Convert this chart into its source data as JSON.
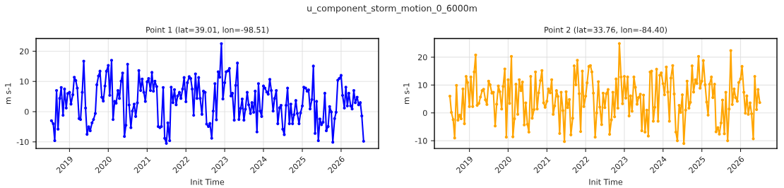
{
  "chart_data": [
    {
      "type": "line",
      "title": "Point 1 (lat=39.01, lon=-98.51)",
      "xlabel": "Init Time",
      "ylabel": "m s-1",
      "annotations": [
        "u_component_storm_motion_0_6000m"
      ],
      "x": [
        "2018-07-15",
        "2018-08-01",
        "2018-08-15",
        "2018-09-01",
        "2018-09-15",
        "2018-10-01",
        "2018-10-15",
        "2018-11-01",
        "2018-11-15",
        "2018-12-01",
        "2018-12-15",
        "2019-01-01",
        "2019-01-15",
        "2019-02-01",
        "2019-02-15",
        "2019-03-01",
        "2019-03-15",
        "2019-04-01",
        "2019-04-15",
        "2019-05-01",
        "2019-05-15",
        "2019-06-01",
        "2019-06-15",
        "2019-07-01",
        "2019-07-15",
        "2019-08-01",
        "2019-08-15",
        "2019-09-01",
        "2019-09-15",
        "2019-10-01",
        "2019-10-15",
        "2019-11-01",
        "2019-11-15",
        "2019-12-01",
        "2019-12-15",
        "2020-01-01",
        "2020-01-15",
        "2020-02-01",
        "2020-02-15",
        "2020-03-01",
        "2020-03-15",
        "2020-04-01",
        "2020-04-15",
        "2020-05-01",
        "2020-05-15",
        "2020-06-01",
        "2020-06-15",
        "2020-07-01",
        "2020-07-15",
        "2020-08-01",
        "2020-08-15",
        "2020-09-01",
        "2020-09-15",
        "2020-10-01",
        "2020-10-15",
        "2020-11-01",
        "2020-11-15",
        "2020-12-01",
        "2020-12-15",
        "2021-01-01",
        "2021-01-15",
        "2021-02-01",
        "2021-02-15",
        "2021-03-01",
        "2021-03-15",
        "2021-04-01",
        "2021-04-15",
        "2021-05-01",
        "2021-05-15",
        "2021-06-01",
        "2021-06-15",
        "2021-07-01",
        "2021-07-15",
        "2021-08-01",
        "2021-08-15",
        "2021-09-01",
        "2021-09-15",
        "2021-10-01",
        "2021-10-15",
        "2021-11-01",
        "2021-11-15",
        "2021-12-01",
        "2021-12-15",
        "2022-01-01",
        "2022-01-15",
        "2022-02-01",
        "2022-02-15",
        "2022-03-01",
        "2022-03-15",
        "2022-04-01",
        "2022-04-15",
        "2022-05-01",
        "2022-05-15",
        "2022-06-01",
        "2022-06-15",
        "2022-07-01",
        "2022-07-15",
        "2022-08-01",
        "2022-08-15",
        "2022-09-01",
        "2022-09-15",
        "2022-10-01",
        "2022-10-15",
        "2022-11-01",
        "2022-11-15",
        "2022-12-01",
        "2022-12-15",
        "2023-01-01",
        "2023-01-15",
        "2023-02-01",
        "2023-02-15",
        "2023-03-01",
        "2023-03-15",
        "2023-04-01",
        "2023-04-15",
        "2023-05-01",
        "2023-05-15",
        "2023-06-01",
        "2023-06-15",
        "2023-07-01",
        "2023-07-15",
        "2023-08-01",
        "2023-08-15",
        "2023-09-01",
        "2023-09-15",
        "2023-10-01",
        "2023-10-15",
        "2023-11-01",
        "2023-11-15",
        "2023-12-01",
        "2023-12-15",
        "2024-01-01",
        "2024-01-15",
        "2024-02-01",
        "2024-02-15",
        "2024-03-01",
        "2024-03-15",
        "2024-04-01",
        "2024-04-15",
        "2024-05-01",
        "2024-05-15",
        "2024-06-01",
        "2024-06-15",
        "2024-07-01",
        "2024-07-15",
        "2024-08-01",
        "2024-08-15",
        "2024-09-01",
        "2024-09-15",
        "2024-10-01",
        "2024-10-15",
        "2024-11-01",
        "2024-11-15",
        "2024-12-01",
        "2024-12-15",
        "2025-01-01",
        "2025-01-15",
        "2025-02-01",
        "2025-02-15",
        "2025-03-01",
        "2025-03-15",
        "2025-04-01",
        "2025-04-15",
        "2025-05-01",
        "2025-05-15",
        "2025-06-01",
        "2025-06-15",
        "2025-07-01",
        "2025-07-15",
        "2025-08-01",
        "2025-08-15",
        "2025-09-01",
        "2025-09-15",
        "2025-10-01",
        "2025-10-15",
        "2025-11-01",
        "2025-11-15",
        "2025-12-01",
        "2025-12-15",
        "2026-01-01",
        "2026-01-15",
        "2026-02-01",
        "2026-02-15",
        "2026-03-01",
        "2026-03-15",
        "2026-04-01",
        "2026-04-15",
        "2026-05-01",
        "2026-05-15",
        "2026-06-01",
        "2026-06-15",
        "2026-07-01",
        "2026-07-15",
        "2026-08-01"
      ],
      "series": [
        {
          "color": "#0000ff",
          "values": [
            -3,
            -4,
            -9.6,
            7,
            -5.8,
            4.4,
            8,
            -1.2,
            7.5,
            1.2,
            6,
            6.4,
            2.5,
            5.6,
            11.4,
            10.3,
            7.8,
            -2.3,
            -2.6,
            6.4,
            16.7,
            1.2,
            -7.5,
            -5,
            -6.3,
            -3.7,
            -2.6,
            -0.6,
            8.9,
            11.8,
            13.4,
            4.8,
            3.5,
            8.5,
            13.4,
            15.3,
            5.4,
            17,
            -2.6,
            3.4,
            2.8,
            7,
            4.4,
            10.1,
            12.8,
            -8.2,
            -4.5,
            15.7,
            2.2,
            -5.3,
            0.2,
            2.5,
            -1.6,
            2.9,
            13.6,
            7,
            10.8,
            6.4,
            3.4,
            9.9,
            11,
            7,
            13,
            6.8,
            10.1,
            8.3,
            -4.9,
            -5.3,
            -4.9,
            8,
            -8.8,
            -10.5,
            -3.7,
            -9.6,
            8.1,
            3,
            7.3,
            2.3,
            5.2,
            6.4,
            4.4,
            7.5,
            11.3,
            3.3,
            9.6,
            11.6,
            11,
            7.5,
            -1.2,
            12.5,
            4.4,
            11.3,
            4.4,
            -0.9,
            6.8,
            6.4,
            -4.1,
            -4.9,
            -3.9,
            -8.8,
            0.2,
            9.3,
            -2.7,
            13.2,
            11.4,
            22.5,
            4.2,
            9.6,
            13.2,
            13.5,
            14.3,
            5.2,
            6.1,
            -2.8,
            8.7,
            16.1,
            -2.6,
            1.1,
            4.2,
            -2.8,
            0.8,
            6.4,
            2.3,
            -0.6,
            3,
            -0.2,
            6.8,
            -6.7,
            9.3,
            0.2,
            -1.6,
            8.5,
            7.8,
            6.5,
            5.8,
            10.7,
            7,
            0.2,
            4.4,
            7,
            -4,
            1.3,
            2.1,
            -5.8,
            -7.6,
            2.1,
            7.8,
            -4,
            2.5,
            -4,
            -1,
            3.7,
            -0.6,
            -4,
            -0.4,
            1.9,
            8.1,
            7.8,
            6.8,
            7.2,
            0.9,
            4,
            15.1,
            -7.2,
            3.4,
            -9.6,
            -2.4,
            -4.3,
            -3.5,
            6.1,
            -6.3,
            -4.9,
            1.7,
            -0.1,
            -10.1,
            -2.3,
            -0.2,
            10.4,
            11,
            12,
            5.4,
            1.2,
            8.1,
            1.9,
            6.1,
            1.9,
            0.9,
            7,
            3,
            4.8,
            2.3,
            3,
            -1.4,
            -9.8
          ]
        }
      ],
      "xlim": [
        "2018-02-20",
        "2026-12-20"
      ],
      "ylim": [
        -12.2,
        24.2
      ],
      "xticks": [
        {
          "value": "2019-01-01",
          "label": "2019"
        },
        {
          "value": "2020-01-01",
          "label": "2020"
        },
        {
          "value": "2021-01-01",
          "label": "2021"
        },
        {
          "value": "2022-01-01",
          "label": "2022"
        },
        {
          "value": "2023-01-01",
          "label": "2023"
        },
        {
          "value": "2024-01-01",
          "label": "2024"
        },
        {
          "value": "2025-01-01",
          "label": "2025"
        },
        {
          "value": "2026-01-01",
          "label": "2026"
        }
      ],
      "yticks": [
        -10,
        0,
        10,
        20
      ],
      "grid": true,
      "marker": "circle",
      "line_style": "solid"
    },
    {
      "type": "line",
      "title": "Point 2 (lat=33.76, lon=-84.40)",
      "xlabel": "Init Time",
      "ylabel": "m s-1",
      "x": [
        "2018-07-01",
        "2018-07-15",
        "2018-08-01",
        "2018-08-15",
        "2018-09-01",
        "2018-09-15",
        "2018-10-01",
        "2018-10-15",
        "2018-11-01",
        "2018-11-15",
        "2018-12-01",
        "2018-12-15",
        "2019-01-01",
        "2019-01-15",
        "2019-02-01",
        "2019-02-15",
        "2019-03-01",
        "2019-03-15",
        "2019-04-01",
        "2019-04-15",
        "2019-05-01",
        "2019-05-15",
        "2019-06-01",
        "2019-06-15",
        "2019-07-01",
        "2019-07-15",
        "2019-08-01",
        "2019-08-15",
        "2019-09-01",
        "2019-09-15",
        "2019-10-01",
        "2019-10-15",
        "2019-11-01",
        "2019-11-15",
        "2019-12-01",
        "2019-12-15",
        "2020-01-01",
        "2020-01-15",
        "2020-02-01",
        "2020-02-15",
        "2020-03-01",
        "2020-03-15",
        "2020-04-01",
        "2020-04-15",
        "2020-05-01",
        "2020-05-15",
        "2020-06-01",
        "2020-06-15",
        "2020-07-01",
        "2020-07-15",
        "2020-08-01",
        "2020-08-15",
        "2020-09-01",
        "2020-09-15",
        "2020-10-01",
        "2020-10-15",
        "2020-11-01",
        "2020-11-15",
        "2020-12-01",
        "2020-12-15",
        "2021-01-01",
        "2021-01-15",
        "2021-02-01",
        "2021-02-15",
        "2021-03-01",
        "2021-03-15",
        "2021-04-01",
        "2021-04-15",
        "2021-05-01",
        "2021-05-15",
        "2021-06-01",
        "2021-06-15",
        "2021-07-01",
        "2021-07-15",
        "2021-08-01",
        "2021-08-15",
        "2021-09-01",
        "2021-09-15",
        "2021-10-01",
        "2021-10-15",
        "2021-11-01",
        "2021-11-15",
        "2021-12-01",
        "2021-12-15",
        "2022-01-01",
        "2022-01-15",
        "2022-02-01",
        "2022-02-15",
        "2022-03-01",
        "2022-03-15",
        "2022-04-01",
        "2022-04-15",
        "2022-05-01",
        "2022-05-15",
        "2022-06-01",
        "2022-06-15",
        "2022-07-01",
        "2022-07-15",
        "2022-08-01",
        "2022-08-15",
        "2022-09-01",
        "2022-09-15",
        "2022-10-01",
        "2022-10-15",
        "2022-11-01",
        "2022-11-15",
        "2022-12-01",
        "2022-12-15",
        "2023-01-01",
        "2023-01-15",
        "2023-02-01",
        "2023-02-15",
        "2023-03-01",
        "2023-03-15",
        "2023-04-01",
        "2023-04-15",
        "2023-05-01",
        "2023-05-15",
        "2023-06-01",
        "2023-06-15",
        "2023-07-01",
        "2023-07-15",
        "2023-08-01",
        "2023-08-15",
        "2023-09-01",
        "2023-09-15",
        "2023-10-01",
        "2023-10-15",
        "2023-11-01",
        "2023-11-15",
        "2023-12-01",
        "2023-12-15",
        "2024-01-01",
        "2024-01-15",
        "2024-02-01",
        "2024-02-15",
        "2024-03-01",
        "2024-03-15",
        "2024-04-01",
        "2024-04-15",
        "2024-05-01",
        "2024-05-15",
        "2024-06-01",
        "2024-06-15",
        "2024-07-01",
        "2024-07-15",
        "2024-08-01",
        "2024-08-15",
        "2024-09-01",
        "2024-09-15",
        "2024-10-01",
        "2024-10-15",
        "2024-11-01",
        "2024-11-15",
        "2024-12-01",
        "2024-12-15",
        "2025-01-01",
        "2025-01-15",
        "2025-02-01",
        "2025-02-15",
        "2025-03-01",
        "2025-03-15",
        "2025-04-01",
        "2025-04-15",
        "2025-05-01",
        "2025-05-15",
        "2025-06-01",
        "2025-06-15",
        "2025-07-01",
        "2025-07-15",
        "2025-08-01",
        "2025-08-15",
        "2025-09-01",
        "2025-09-15",
        "2025-10-01",
        "2025-10-15",
        "2025-11-01",
        "2025-11-15",
        "2025-12-01",
        "2025-12-15",
        "2026-01-01",
        "2026-01-15",
        "2026-02-01",
        "2026-02-15",
        "2026-03-01",
        "2026-03-15",
        "2026-04-01",
        "2026-04-15",
        "2026-05-01",
        "2026-05-15",
        "2026-06-01",
        "2026-06-15",
        "2026-07-01"
      ],
      "series": [
        {
          "color": "#ffa500",
          "values": [
            6,
            0.2,
            -2.4,
            -9,
            9.9,
            -2.6,
            -0.8,
            -2.1,
            8.6,
            -3.9,
            13.1,
            10.9,
            2.3,
            12.9,
            2.3,
            14.7,
            20.8,
            2.7,
            3.4,
            5.7,
            8,
            8.5,
            4.7,
            3,
            11.4,
            10.1,
            7.1,
            7.4,
            -4.7,
            3.1,
            9.7,
            7.6,
            1.4,
            9.5,
            15.8,
            -8.7,
            11.9,
            3.4,
            20.3,
            -8.6,
            -2.1,
            10.3,
            -0.5,
            11.9,
            8,
            11.1,
            -4.3,
            3.6,
            -4.1,
            -6.9,
            13.1,
            -1.9,
            1.2,
            14.7,
            1.4,
            7.2,
            11.6,
            15.2,
            3.6,
            2,
            4.2,
            8.6,
            7.2,
            11.9,
            -0.5,
            2.5,
            8,
            5.9,
            -7.4,
            7.4,
            0.8,
            -10.3,
            7.6,
            1.9,
            4.8,
            -7.9,
            -1.9,
            16.9,
            10.1,
            18.9,
            6.9,
            -6.7,
            15,
            2.3,
            6,
            10.8,
            16.7,
            17,
            14.7,
            7.1,
            -8.7,
            0,
            11.2,
            2.1,
            -4.2,
            7.1,
            1.9,
            6.9,
            8.4,
            -7.7,
            -2.5,
            7.4,
            -1.4,
            12.2,
            1.7,
            24.9,
            12.9,
            3.3,
            13.1,
            5.3,
            12.9,
            -1.1,
            6.1,
            0.6,
            12.9,
            9.2,
            3.1,
            5.5,
            6.7,
            -6.4,
            6.4,
            -6.9,
            1,
            -8.3,
            14.7,
            15,
            -3,
            2,
            15.7,
            -3,
            13.5,
            14.4,
            10.5,
            6.5,
            16.5,
            7.5,
            -3,
            12.5,
            17,
            6.8,
            -6.9,
            -10,
            2.7,
            0.2,
            6.5,
            -11,
            1,
            11.4,
            1.7,
            3.8,
            16.9,
            7.5,
            11.9,
            10.6,
            20.3,
            8.9,
            11.4,
            18.8,
            10.1,
            3.9,
            -0.8,
            10.3,
            12.9,
            5.5,
            10.3,
            -6.8,
            -5.3,
            -7.6,
            -3.6,
            4.6,
            -7.5,
            7.4,
            -10,
            1.4,
            22.4,
            3,
            8.6,
            5.5,
            4.2,
            10.9,
            12.2,
            16.7,
            7.4,
            -0.1,
            6.1,
            -0.5,
            3.6,
            -0.3,
            -9.3,
            13.1,
            1.2,
            8.4,
            3.7
          ]
        }
      ],
      "xlim": [
        "2018-02-05",
        "2026-12-10"
      ],
      "ylim": [
        -12.8,
        26.7
      ],
      "xticks": [
        {
          "value": "2019-01-01",
          "label": "2019"
        },
        {
          "value": "2020-01-01",
          "label": "2020"
        },
        {
          "value": "2021-01-01",
          "label": "2021"
        },
        {
          "value": "2022-01-01",
          "label": "2022"
        },
        {
          "value": "2023-01-01",
          "label": "2023"
        },
        {
          "value": "2024-01-01",
          "label": "2024"
        },
        {
          "value": "2025-01-01",
          "label": "2025"
        },
        {
          "value": "2026-01-01",
          "label": "2026"
        }
      ],
      "yticks": [
        -10,
        0,
        10,
        20
      ],
      "grid": true,
      "marker": "circle",
      "line_style": "solid"
    }
  ]
}
